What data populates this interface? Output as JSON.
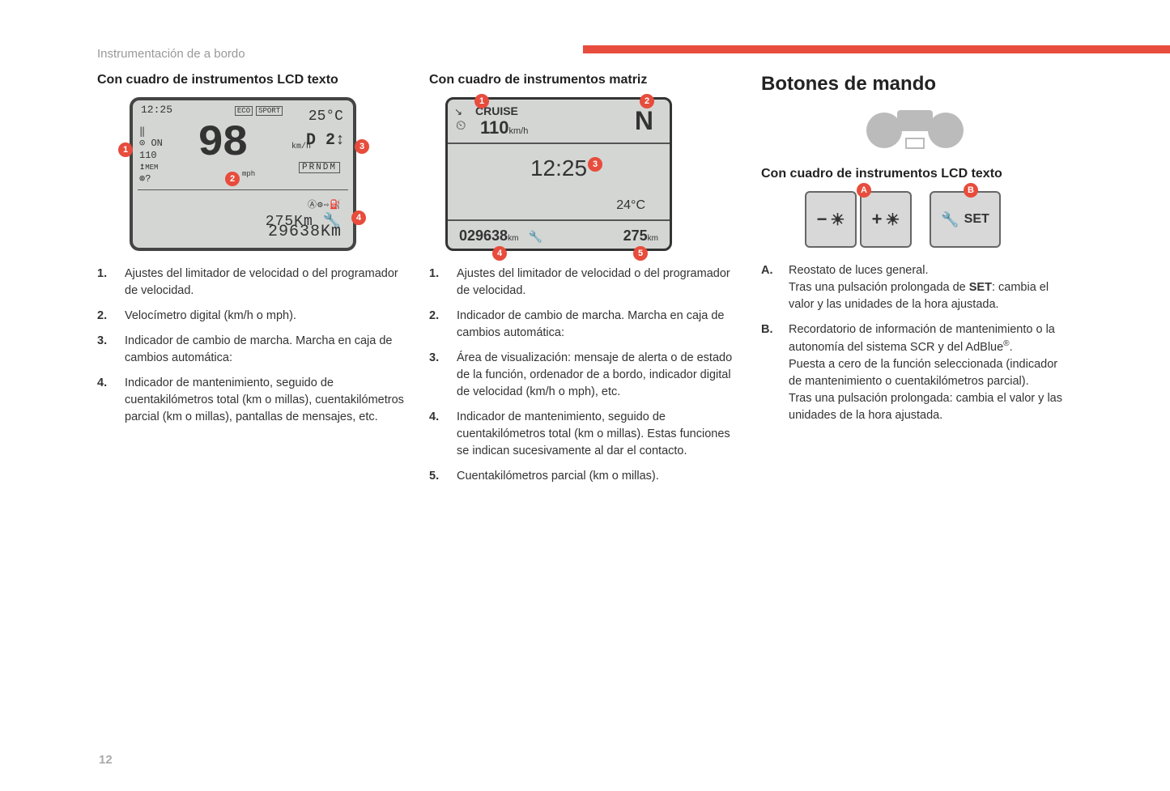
{
  "meta": {
    "section_header": "Instrumentación de a bordo",
    "page_number": "12",
    "accent_color": "#e74c3c",
    "background_color": "#ffffff",
    "lcd_bg": "#d4d6d4"
  },
  "col1": {
    "title": "Con cuadro de instrumentos LCD texto",
    "lcd": {
      "time": "12:25",
      "eco_label": "ECO",
      "sport_label": "SPORT",
      "temperature": "25°C",
      "speed": "98",
      "speed_unit_top": "km/h",
      "speed_unit_bottom": "mph",
      "gear": "D 2↕",
      "gear_selector": "PRNDM",
      "cruise_on": "ON",
      "cruise_set": "110",
      "cruise_mem": "MEM",
      "service_distance": "275Km",
      "odometer": "29638Km"
    },
    "callouts": [
      "1",
      "2",
      "3",
      "4"
    ],
    "list": [
      {
        "n": "1.",
        "t": "Ajustes del limitador de velocidad o del programador de velocidad."
      },
      {
        "n": "2.",
        "t": "Velocímetro digital (km/h o mph)."
      },
      {
        "n": "3.",
        "t": "Indicador de cambio de marcha. Marcha en caja de cambios automática:"
      },
      {
        "n": "4.",
        "t": "Indicador de mantenimiento, seguido de cuentakilómetros total (km o millas), cuentakilómetros parcial (km o millas), pantallas de mensajes, etc."
      }
    ]
  },
  "col2": {
    "title": "Con cuadro de instrumentos matriz",
    "matrix": {
      "cruise_label": "CRUISE",
      "cruise_value": "110",
      "cruise_unit": "km/h",
      "compass": "N",
      "time": "12:25",
      "temperature": "24°C",
      "odometer": "029638",
      "odometer_unit": "km",
      "trip": "275",
      "trip_unit": "km"
    },
    "callouts": [
      "1",
      "2",
      "3",
      "4",
      "5"
    ],
    "list": [
      {
        "n": "1.",
        "t": "Ajustes del limitador de velocidad o del programador de velocidad."
      },
      {
        "n": "2.",
        "t": "Indicador de cambio de marcha. Marcha en caja de cambios automática:"
      },
      {
        "n": "3.",
        "t": "Área de visualización: mensaje de alerta o de estado de la función, ordenador de a bordo, indicador digital de velocidad (km/h o mph), etc."
      },
      {
        "n": "4.",
        "t": "Indicador de mantenimiento, seguido de cuentakilómetros total (km o millas). Estas funciones se indican sucesivamente al dar el contacto."
      },
      {
        "n": "5.",
        "t": "Cuentakilómetros parcial (km o millas)."
      }
    ]
  },
  "col3": {
    "heading": "Botones de mando",
    "subtitle": "Con cuadro de instrumentos LCD texto",
    "buttons": {
      "minus": "−",
      "plus": "+",
      "set": "SET",
      "sun_glyph": "☀",
      "wrench_glyph": "🔧"
    },
    "callouts": [
      "A",
      "B"
    ],
    "list": [
      {
        "n": "A.",
        "html": "Reostato de luces general.<br>Tras una pulsación prolongada de <b>SET</b>: cambia el valor y las unidades de la hora ajustada."
      },
      {
        "n": "B.",
        "html": "Recordatorio de información de mantenimiento o la autonomía del sistema SCR y del AdBlue<sup>®</sup>.<br>Puesta a cero de la función seleccionada (indicador de mantenimiento o cuentakilómetros parcial).<br>Tras una pulsación prolongada: cambia el valor y las unidades de la hora ajustada."
      }
    ]
  }
}
